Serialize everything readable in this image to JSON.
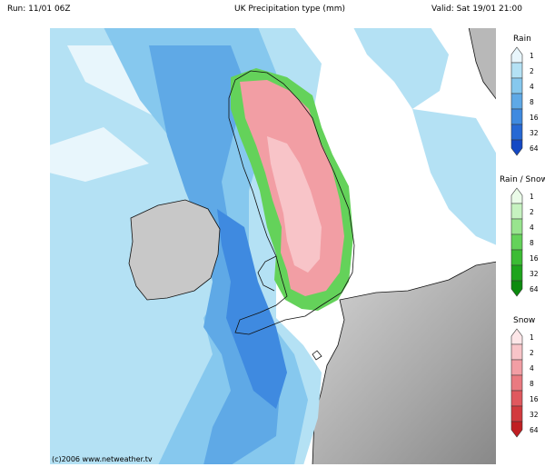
{
  "header": {
    "run": "Run: 11/01 06Z",
    "title": "UK Precipitation type (mm)",
    "valid": "Valid: Sat 19/01 21:00"
  },
  "credit": "(c)2006 www.netweather.tv",
  "legends": [
    {
      "title": "Rain",
      "levels": [
        "1",
        "2",
        "4",
        "8",
        "16",
        "32",
        "64"
      ],
      "colors": [
        "#e8f6fc",
        "#b4e1f4",
        "#86c8ee",
        "#5fa9e6",
        "#3f8ae0",
        "#2668d4",
        "#1448c4"
      ]
    },
    {
      "title": "Rain / Snow",
      "levels": [
        "1",
        "2",
        "4",
        "8",
        "16",
        "32",
        "64"
      ],
      "colors": [
        "#eafbe8",
        "#c6f2c0",
        "#98e48e",
        "#64d25a",
        "#3cbc34",
        "#1ea41c",
        "#0c8a0e"
      ]
    },
    {
      "title": "Snow",
      "levels": [
        "1",
        "2",
        "4",
        "8",
        "16",
        "32",
        "64"
      ],
      "colors": [
        "#fde6e8",
        "#f8c4c8",
        "#f29ea4",
        "#ea7a80",
        "#e0585e",
        "#d23a3e",
        "#c01e22"
      ]
    }
  ],
  "map": {
    "precip_types_shown": [
      "rain",
      "rain/snow",
      "snow"
    ],
    "sea_color": "#ffffff",
    "land_color": "#b8b8b8"
  }
}
